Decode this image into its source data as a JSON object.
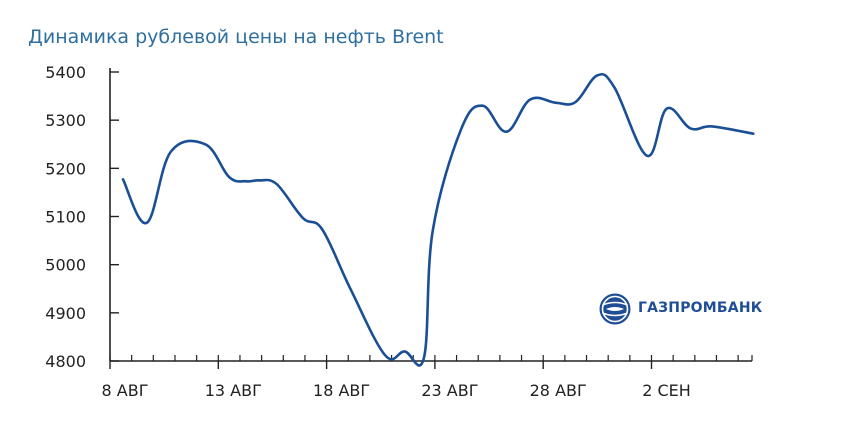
{
  "chart_data": {
    "type": "line",
    "title": "Динамика рублевой цены на нефть Brent",
    "xlabel": "",
    "ylabel": "",
    "ylim": [
      4800,
      5400
    ],
    "yticks": [
      "5400",
      "5300",
      "5200",
      "5100",
      "5000",
      "4900",
      "4800"
    ],
    "xticks": [
      {
        "label": "8 АВГ",
        "day": 8
      },
      {
        "label": "13 АВГ",
        "day": 13
      },
      {
        "label": "18 АВГ",
        "day": 18
      },
      {
        "label": "23 АВГ",
        "day": 23
      },
      {
        "label": "28 АВГ",
        "day": 28
      },
      {
        "label": "2 СЕН",
        "day": 33
      }
    ],
    "grid": false,
    "color": "#1a4f96",
    "series": [
      {
        "x": [
          8.6,
          9.7,
          10.8,
          12.4,
          13.5,
          14.3,
          14.9,
          15.7,
          16.9,
          17.8,
          19.1,
          20.7,
          21.6,
          22.5,
          22.9,
          24.2,
          25.2,
          26.3,
          27.4,
          28.6,
          29.5,
          30.5,
          31.3,
          32.8,
          33.7,
          34.8,
          35.8,
          37.7
        ],
        "y": [
          5177,
          5087,
          5234,
          5250,
          5182,
          5173,
          5175,
          5167,
          5097,
          5073,
          4950,
          4812,
          4820,
          4808,
          5070,
          5280,
          5330,
          5276,
          5343,
          5336,
          5338,
          5393,
          5367,
          5226,
          5324,
          5283,
          5287,
          5272
        ]
      }
    ]
  },
  "logo": {
    "text": "ГАЗПРОМБАНК",
    "icon": "gazprombank-globe-icon",
    "color": "#1f4e96"
  }
}
